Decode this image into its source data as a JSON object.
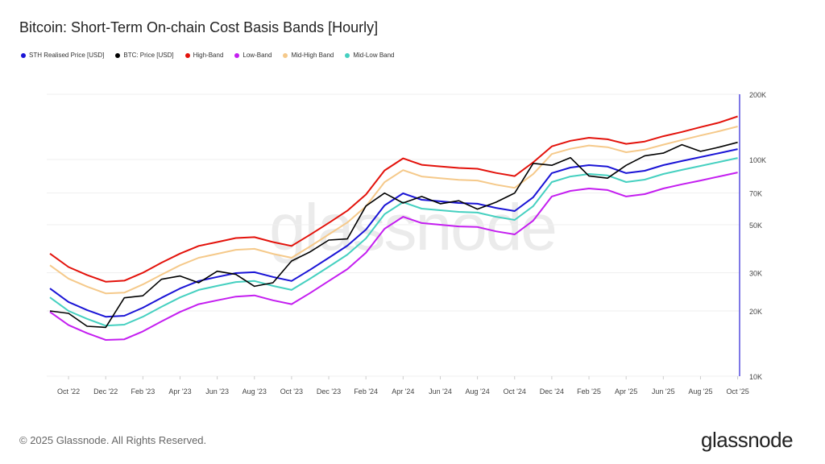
{
  "title": "Bitcoin: Short-Term On-chain Cost Basis Bands [Hourly]",
  "footer": {
    "copyright": "© 2025 Glassnode. All Rights Reserved.",
    "logo": "glassnode",
    "watermark": "glassnode"
  },
  "chart_data": {
    "type": "line",
    "title": "Bitcoin: Short-Term On-chain Cost Basis Bands [Hourly]",
    "y_scale": "log",
    "ylim": [
      10000,
      200000
    ],
    "y_ticks": [
      10000,
      20000,
      30000,
      50000,
      70000,
      100000,
      200000
    ],
    "y_tick_labels": [
      "10K",
      "20K",
      "30K",
      "50K",
      "70K",
      "100K",
      "200K"
    ],
    "x_tick_labels": [
      "Oct '22",
      "Dec '22",
      "Feb '23",
      "Apr '23",
      "Jun '23",
      "Aug '23",
      "Oct '23",
      "Dec '23",
      "Feb '24",
      "Apr '24",
      "Jun '24",
      "Aug '24",
      "Oct '24",
      "Dec '24",
      "Feb '25",
      "Apr '25",
      "Jun '25",
      "Aug '25",
      "Oct '25"
    ],
    "legend_position": "top-left",
    "grid": "horizontal",
    "x": [
      "2022-09",
      "2022-10",
      "2022-11",
      "2022-12",
      "2023-01",
      "2023-02",
      "2023-03",
      "2023-04",
      "2023-05",
      "2023-06",
      "2023-07",
      "2023-08",
      "2023-09",
      "2023-10",
      "2023-11",
      "2023-12",
      "2024-01",
      "2024-02",
      "2024-03",
      "2024-04",
      "2024-05",
      "2024-06",
      "2024-07",
      "2024-08",
      "2024-09",
      "2024-10",
      "2024-11",
      "2024-12",
      "2025-01",
      "2025-02",
      "2025-03",
      "2025-04",
      "2025-05",
      "2025-06",
      "2025-07",
      "2025-08",
      "2025-09",
      "2025-10"
    ],
    "series": [
      {
        "name": "STH Realised Price [USD]",
        "color": "#1a14d6",
        "values": [
          25400,
          22000,
          20200,
          18800,
          19000,
          20700,
          23000,
          25400,
          27500,
          28700,
          29900,
          30200,
          28700,
          27500,
          31000,
          35200,
          40000,
          47500,
          61400,
          69800,
          65200,
          64100,
          63000,
          62500,
          59800,
          57800,
          66900,
          86500,
          91800,
          94200,
          92700,
          86500,
          88700,
          94200,
          98400,
          102600,
          107000,
          111700
        ]
      },
      {
        "name": "BTC: Price [USD]",
        "color": "#000000",
        "values": [
          20000,
          19500,
          17000,
          16800,
          23000,
          23500,
          28000,
          29000,
          27000,
          30500,
          29500,
          26000,
          27000,
          34000,
          37500,
          42500,
          43000,
          61000,
          70000,
          63000,
          67500,
          62500,
          64500,
          59000,
          63500,
          70000,
          96000,
          94000,
          102000,
          84000,
          82000,
          94000,
          104000,
          107000,
          117000,
          109000,
          114000,
          120000
        ]
      },
      {
        "name": "High-Band",
        "color": "#e3120b",
        "values": [
          36800,
          31900,
          29300,
          27300,
          27600,
          30000,
          33400,
          36800,
          39900,
          41600,
          43400,
          43800,
          41600,
          39900,
          45000,
          51000,
          58000,
          68900,
          89000,
          101200,
          94500,
          92900,
          91400,
          90600,
          86700,
          83800,
          97000,
          115000,
          122000,
          126000,
          124000,
          118000,
          121000,
          128000,
          134000,
          141000,
          148000,
          158000
        ]
      },
      {
        "name": "Low-Band",
        "color": "#c41ef0",
        "values": [
          19800,
          17200,
          15800,
          14700,
          14800,
          16100,
          17900,
          19800,
          21500,
          22400,
          23300,
          23600,
          22400,
          21500,
          24200,
          27500,
          31200,
          37100,
          47900,
          54400,
          50900,
          50000,
          49100,
          48800,
          46600,
          45100,
          52200,
          67500,
          71600,
          73500,
          72300,
          67500,
          69200,
          73500,
          76800,
          80000,
          83500,
          87100
        ]
      },
      {
        "name": "Mid-High Band",
        "color": "#f5c98a",
        "values": [
          32500,
          28200,
          25900,
          24100,
          24300,
          26500,
          29400,
          32500,
          35200,
          36700,
          38300,
          38700,
          36700,
          35200,
          39700,
          45100,
          51200,
          60800,
          78600,
          89300,
          83500,
          82000,
          80600,
          80000,
          76500,
          74000,
          85600,
          106000,
          112000,
          116000,
          114000,
          108000,
          111000,
          117000,
          123000,
          129000,
          135000,
          142000
        ]
      },
      {
        "name": "Mid-Low Band",
        "color": "#45d0c0",
        "values": [
          23100,
          20000,
          18400,
          17100,
          17300,
          18800,
          20900,
          23100,
          25000,
          26100,
          27200,
          27500,
          26100,
          25000,
          28200,
          32000,
          36400,
          43200,
          55900,
          63500,
          59300,
          58300,
          57300,
          56900,
          54400,
          52600,
          60900,
          78700,
          83500,
          85700,
          84400,
          78700,
          80700,
          85700,
          89500,
          93400,
          97400,
          101600
        ]
      }
    ]
  }
}
